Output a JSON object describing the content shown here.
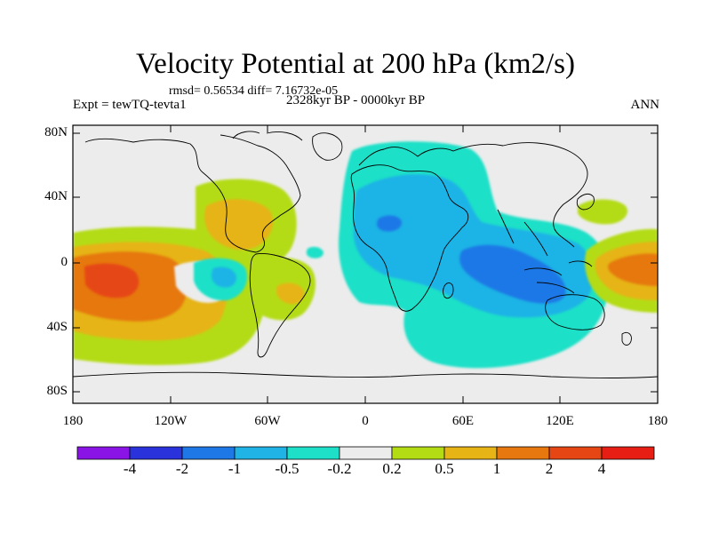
{
  "header": {
    "title": "Velocity Potential at 200 hPa (km2/s)",
    "stats": "rmsd= 0.56534 diff= 7.16732e-05",
    "experiment": "Expt = tewTQ-tevta1",
    "period": "2328kyr BP - 0000kyr BP",
    "season": "ANN"
  },
  "axes": {
    "y_labels": [
      "80N",
      "40N",
      "0",
      "40S",
      "80S"
    ],
    "x_labels": [
      "180",
      "120W",
      "60W",
      "0",
      "60E",
      "120E",
      "180"
    ]
  },
  "colorbar": {
    "labels": [
      "-4",
      "-2",
      "-1",
      "-0.5",
      "-0.2",
      "0.2",
      "0.5",
      "1",
      "2",
      "4"
    ],
    "colors": [
      "#8a14e6",
      "#2a32dc",
      "#1e78e6",
      "#1fb3e6",
      "#1ee0c8",
      "#ececec",
      "#b4dc14",
      "#e6b414",
      "#e6780f",
      "#e64614",
      "#e61e14"
    ]
  },
  "field_colors": {
    "neutral": "#ececec",
    "pos_weak": "#b4dc14",
    "pos_mid": "#e6b414",
    "pos_strong": "#e6780f",
    "pos_max": "#e64614",
    "neg_weak": "#1ee0c8",
    "neg_mid": "#1fb3e6",
    "neg_strong": "#1e78e6"
  }
}
